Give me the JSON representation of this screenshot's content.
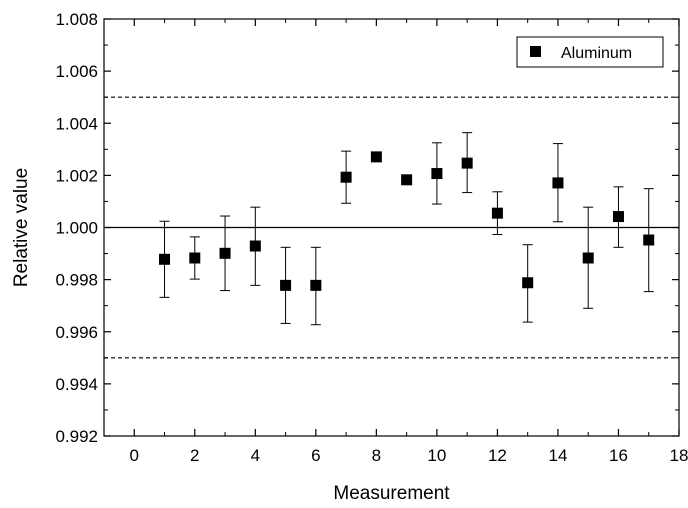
{
  "chart_data": {
    "type": "scatter",
    "title": "",
    "xlabel": "Measurement",
    "ylabel": "Relative value",
    "xlim": [
      -1,
      18
    ],
    "ylim": [
      0.992,
      1.008
    ],
    "x_ticks": [
      0,
      2,
      4,
      6,
      8,
      10,
      12,
      14,
      16,
      18
    ],
    "y_ticks": [
      0.992,
      0.994,
      0.996,
      0.998,
      1.0,
      1.002,
      1.004,
      1.006,
      1.008
    ],
    "x_tick_labels": [
      "0",
      "2",
      "4",
      "6",
      "8",
      "10",
      "12",
      "14",
      "16",
      "18"
    ],
    "y_tick_labels": [
      "0.992",
      "0.994",
      "0.996",
      "0.998",
      "1.000",
      "1.002",
      "1.004",
      "1.006",
      "1.008"
    ],
    "grid": false,
    "legend_position": "top-right",
    "reference_lines": [
      {
        "y": 1.0,
        "style": "solid"
      },
      {
        "y": 1.005,
        "style": "dashed"
      },
      {
        "y": 0.995,
        "style": "dashed"
      }
    ],
    "series": [
      {
        "name": "Aluminum",
        "marker": "square",
        "color": "#000000",
        "points": [
          {
            "x": 1,
            "y": 0.99878,
            "err_low": 0.99732,
            "err_high": 1.00024
          },
          {
            "x": 2,
            "y": 0.99883,
            "err_low": 0.99802,
            "err_high": 0.99964
          },
          {
            "x": 3,
            "y": 0.99901,
            "err_low": 0.99758,
            "err_high": 1.00044
          },
          {
            "x": 4,
            "y": 0.99929,
            "err_low": 0.99778,
            "err_high": 1.00078
          },
          {
            "x": 5,
            "y": 0.99778,
            "err_low": 0.99632,
            "err_high": 0.99924
          },
          {
            "x": 6,
            "y": 0.99778,
            "err_low": 0.99627,
            "err_high": 0.99924
          },
          {
            "x": 7,
            "y": 1.00193,
            "err_low": 1.00093,
            "err_high": 1.00293
          },
          {
            "x": 8,
            "y": 1.00271,
            "err_low": 1.00256,
            "err_high": 1.00286
          },
          {
            "x": 9,
            "y": 1.00183,
            "err_low": 1.00173,
            "err_high": 1.00193
          },
          {
            "x": 10,
            "y": 1.00207,
            "err_low": 1.0009,
            "err_high": 1.00325
          },
          {
            "x": 11,
            "y": 1.00247,
            "err_low": 1.00134,
            "err_high": 1.00364
          },
          {
            "x": 12,
            "y": 1.00055,
            "err_low": 0.99973,
            "err_high": 1.00137
          },
          {
            "x": 13,
            "y": 0.99788,
            "err_low": 0.99637,
            "err_high": 0.99934
          },
          {
            "x": 14,
            "y": 1.00171,
            "err_low": 1.00022,
            "err_high": 1.00322
          },
          {
            "x": 15,
            "y": 0.99883,
            "err_low": 0.9969,
            "err_high": 1.00078
          },
          {
            "x": 16,
            "y": 1.00042,
            "err_low": 0.99924,
            "err_high": 1.00156
          },
          {
            "x": 17,
            "y": 0.99952,
            "err_low": 0.99754,
            "err_high": 1.00149
          }
        ]
      }
    ]
  }
}
